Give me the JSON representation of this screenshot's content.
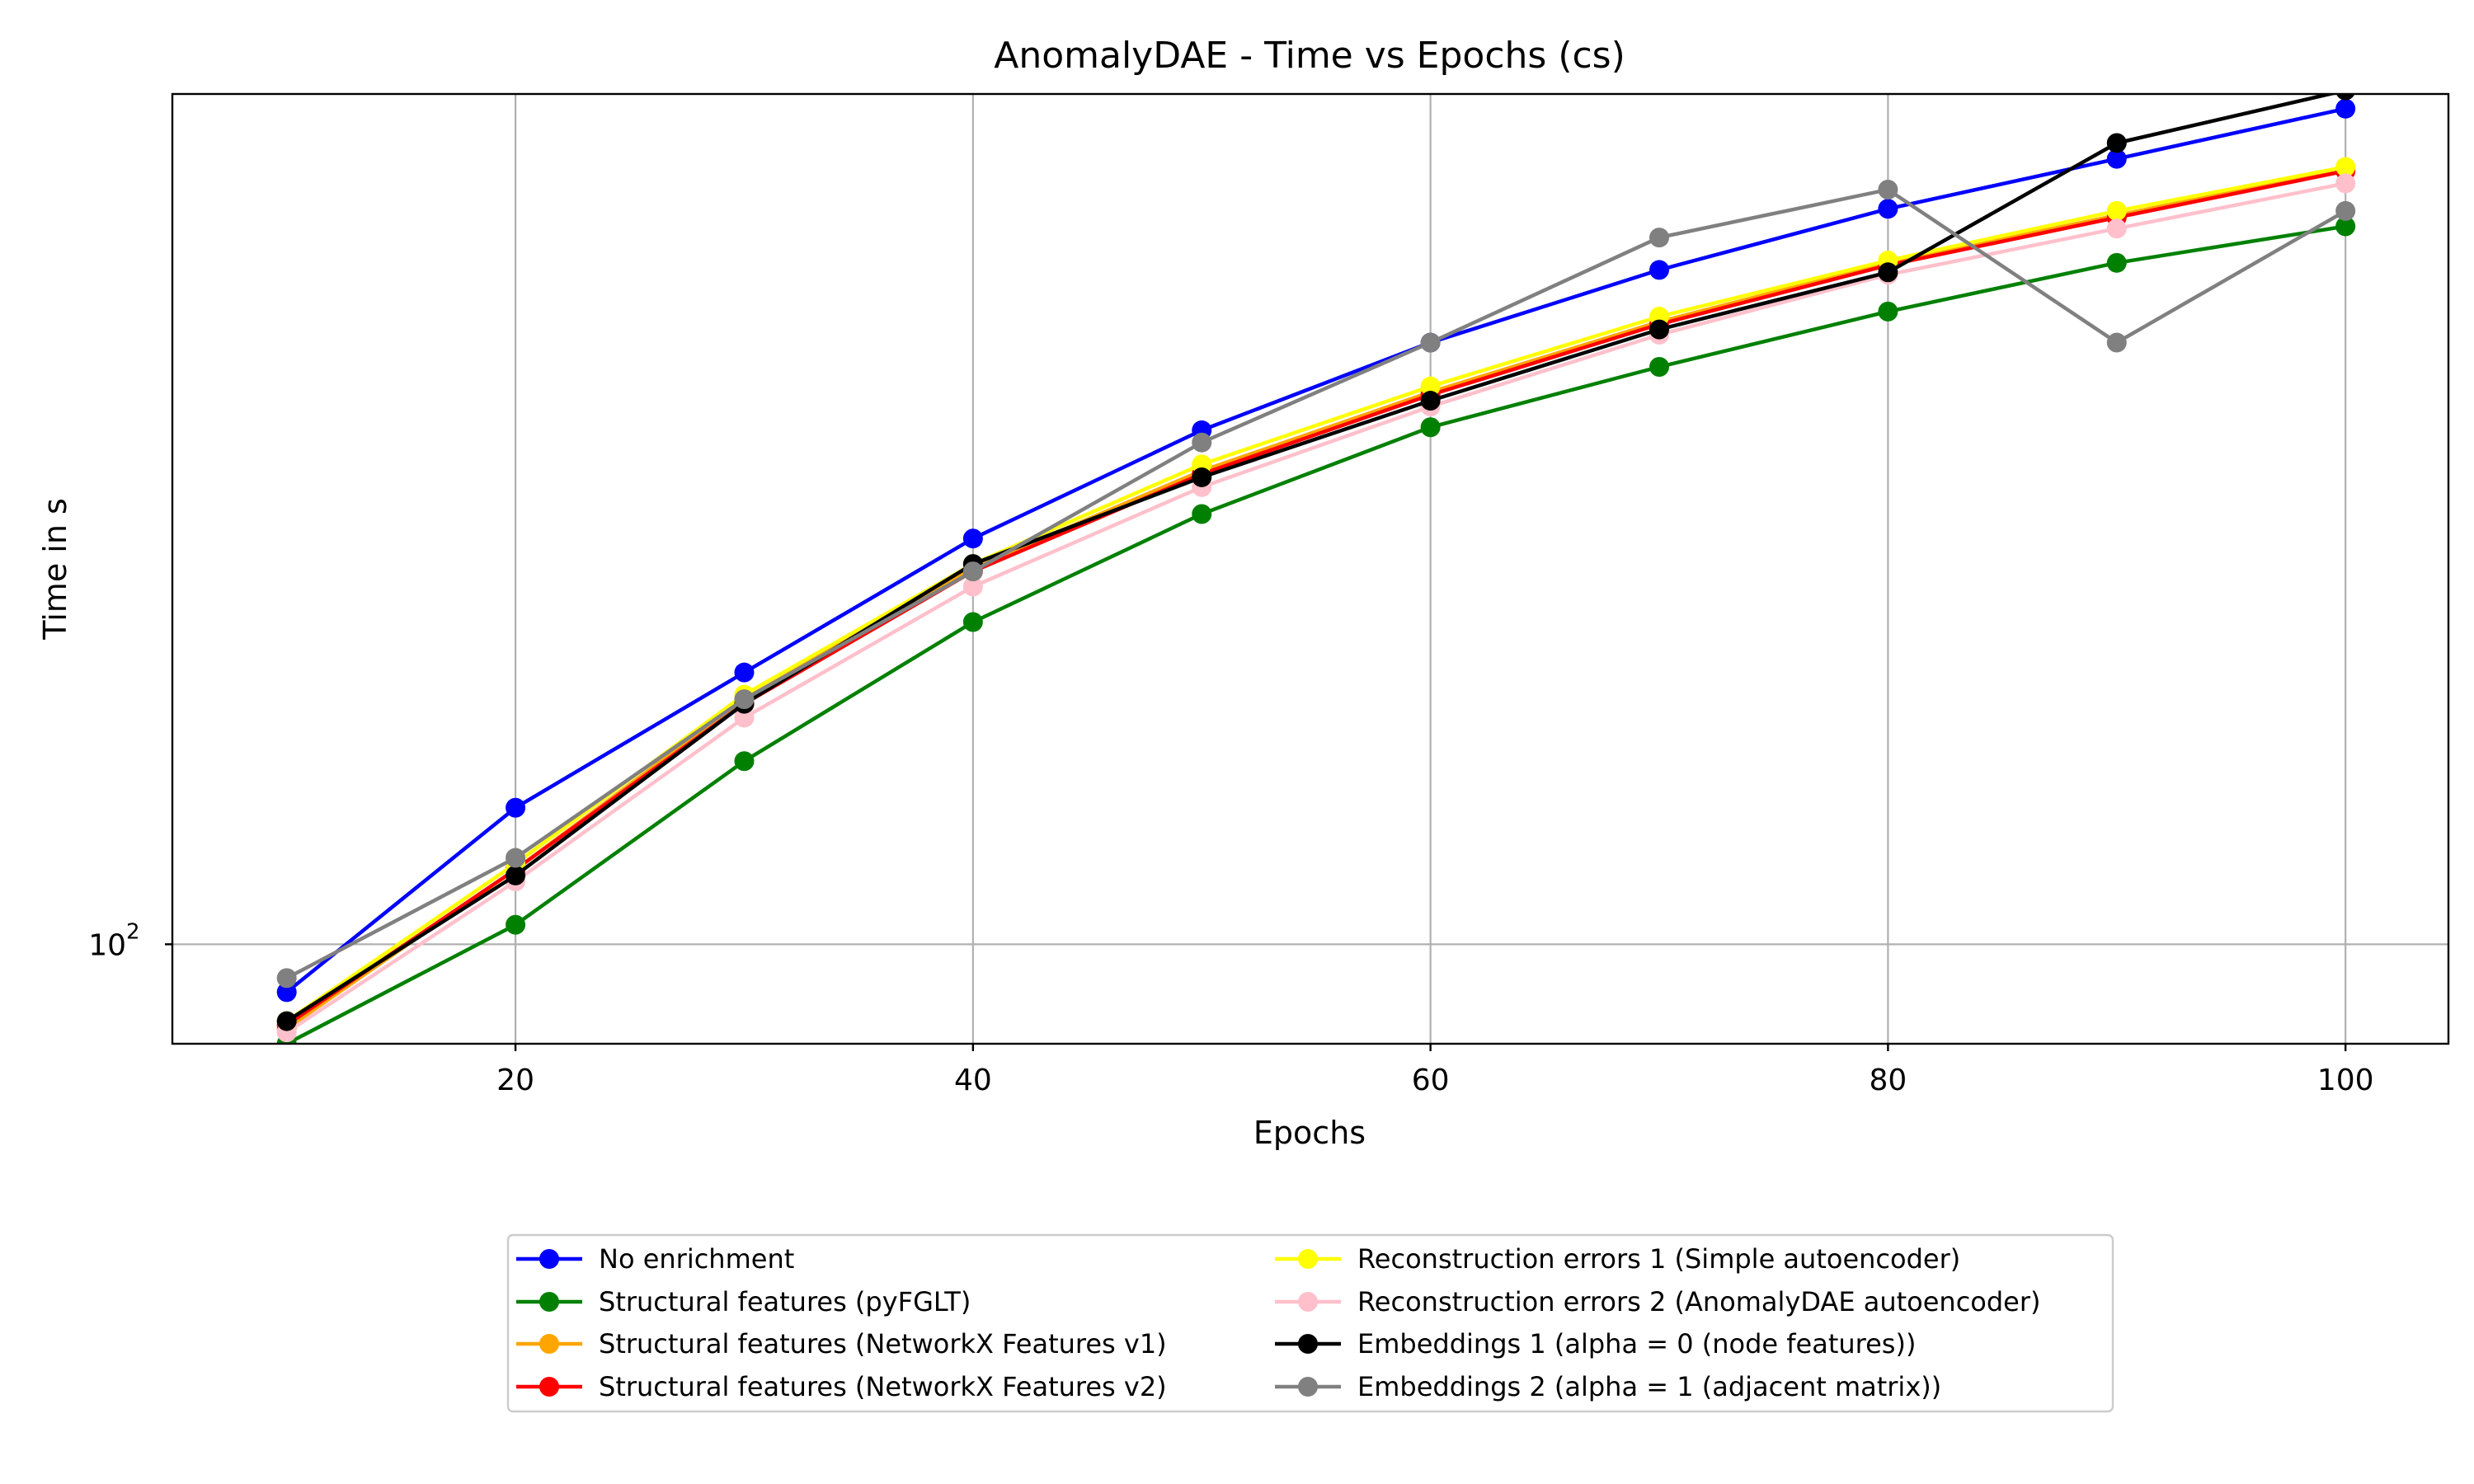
{
  "chart_data": {
    "type": "line",
    "title": "AnomalyDAE - Time vs Epochs (cs)",
    "xlabel": "Epochs",
    "ylabel": "Time in s",
    "yscale": "log",
    "xlim": [
      5,
      104.5
    ],
    "ylim": [
      86,
      363
    ],
    "xticks": [
      {
        "value": 20,
        "label": "20"
      },
      {
        "value": 40,
        "label": "40"
      },
      {
        "value": 60,
        "label": "60"
      },
      {
        "value": 80,
        "label": "80"
      },
      {
        "value": 100,
        "label": "100"
      }
    ],
    "yticks": [
      {
        "value": 100,
        "label_base": "10",
        "label_exp": "2"
      }
    ],
    "grid": true,
    "legend_position": "below plot, two columns",
    "x": [
      10,
      20,
      30,
      40,
      50,
      60,
      70,
      80,
      90,
      100
    ],
    "series": [
      {
        "name": "No enrichment",
        "color": "#0000ff",
        "values": [
          93,
          123,
          151,
          185,
          218,
          249,
          278,
          305,
          329,
          355
        ]
      },
      {
        "name": "Structural features (pyFGLT)",
        "color": "#008000",
        "values": [
          86,
          103,
          132,
          163,
          192,
          219,
          240,
          261,
          281,
          297
        ]
      },
      {
        "name": "Structural features (NetworkX Features v1)",
        "color": "#ffa500",
        "values": [
          88,
          112,
          145,
          177,
          205,
          231,
          257,
          281,
          302,
          324
        ]
      },
      {
        "name": "Structural features (NetworkX Features v2)",
        "color": "#ff0000",
        "values": [
          88.5,
          112,
          144,
          176,
          204,
          230,
          256,
          280,
          301,
          323
        ]
      },
      {
        "name": "Reconstruction errors 1 (Simple autoencoder)",
        "color": "#ffff00",
        "values": [
          89,
          113,
          146,
          178,
          207,
          233,
          259,
          282,
          304,
          325
        ]
      },
      {
        "name": "Reconstruction errors 2 (AnomalyDAE autoencoder)",
        "color": "#ffc0cb",
        "values": [
          87.5,
          110,
          141,
          172,
          200,
          226,
          252,
          276,
          296,
          317
        ]
      },
      {
        "name": "Embeddings 1 (alpha = 0 (node features))",
        "color": "#000000",
        "values": [
          89,
          111,
          144,
          178,
          203,
          228,
          254,
          277,
          337,
          365
        ]
      },
      {
        "name": "Embeddings 2 (alpha = 1 (adjacent matrix))",
        "color": "#808080",
        "values": [
          95,
          114,
          145,
          176,
          214,
          249,
          292,
          314,
          249,
          304
        ]
      }
    ]
  }
}
